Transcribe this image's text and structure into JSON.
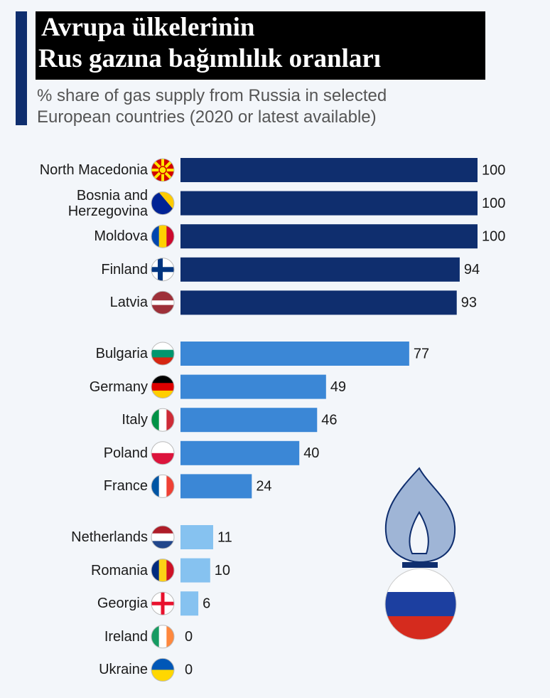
{
  "chart_data": {
    "type": "bar",
    "orientation": "horizontal",
    "title": [
      "Avrupa ülkelerinin",
      "Rus gazına bağımlılık oranları"
    ],
    "subtitle": [
      "% share of gas supply from Russia in selected",
      "European countries (2020 or latest available)"
    ],
    "categories": [
      "North Macedonia",
      "Bosnia and Herzegovina",
      "Moldova",
      "Finland",
      "Latvia",
      "Bulgaria",
      "Germany",
      "Italy",
      "Poland",
      "France",
      "Netherlands",
      "Romania",
      "Georgia",
      "Ireland",
      "Ukraine"
    ],
    "values": [
      100,
      100,
      100,
      94,
      93,
      77,
      49,
      46,
      40,
      24,
      11,
      10,
      6,
      0,
      0
    ],
    "colors": [
      "#0f2e6e",
      "#0f2e6e",
      "#0f2e6e",
      "#0f2e6e",
      "#0f2e6e",
      "#3b87d6",
      "#3b87d6",
      "#3b87d6",
      "#3b87d6",
      "#3b87d6",
      "#86c2f0",
      "#86c2f0",
      "#86c2f0",
      "#86c2f0",
      "#86c2f0"
    ],
    "xlim": [
      0,
      100
    ]
  }
}
